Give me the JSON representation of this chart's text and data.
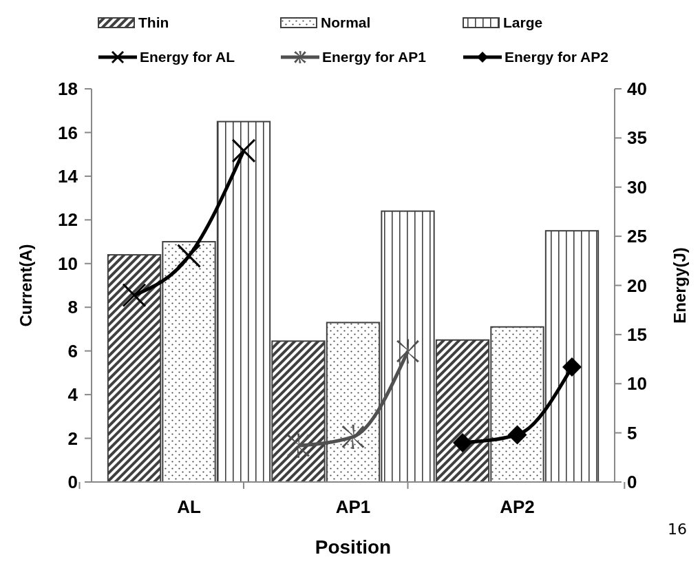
{
  "chart_data": {
    "type": "bar",
    "xlabel": "Position",
    "ylabel": "Current(A)",
    "y2label": "Energy(J)",
    "categories": [
      null,
      "AL",
      null,
      null,
      "AP1",
      null,
      null,
      "AP2",
      null
    ],
    "series": [
      {
        "name": "Thin",
        "color": "#404040",
        "values": [
          10.4,
          null,
          null,
          6.45,
          null,
          null,
          6.5,
          null,
          null
        ]
      },
      {
        "name": "Normal",
        "color": "#404040",
        "values": [
          null,
          11.0,
          null,
          null,
          7.3,
          null,
          null,
          7.1,
          null
        ]
      },
      {
        "name": "Large",
        "color": "#404040",
        "values": [
          null,
          null,
          16.5,
          null,
          null,
          12.4,
          null,
          null,
          11.5
        ]
      },
      {
        "name": "Energy for AL",
        "type": "line",
        "axis": "y2",
        "color": "#000000",
        "marker": "cross",
        "values": [
          19.0,
          23.0,
          33.7,
          null,
          null,
          null,
          null,
          null,
          null
        ]
      },
      {
        "name": "Energy for AP1",
        "type": "line",
        "axis": "y2",
        "color": "#505050",
        "marker": "star",
        "values": [
          null,
          null,
          null,
          3.7,
          4.6,
          13.3,
          null,
          null,
          null
        ]
      },
      {
        "name": "Energy for AP2",
        "type": "line",
        "axis": "y2",
        "color": "#000000",
        "marker": "diamond",
        "values": [
          null,
          null,
          null,
          null,
          null,
          null,
          4.0,
          4.8,
          11.7
        ]
      }
    ],
    "ylim": [
      0,
      18
    ],
    "yticks": [
      0,
      2,
      4,
      6,
      8,
      10,
      12,
      14,
      16,
      18
    ],
    "y2lim": [
      0,
      40
    ],
    "y2ticks": [
      0,
      5,
      10,
      15,
      20,
      25,
      30,
      35,
      40
    ],
    "legend": "top",
    "line_style": "solid",
    "annotations": [
      "16"
    ]
  }
}
